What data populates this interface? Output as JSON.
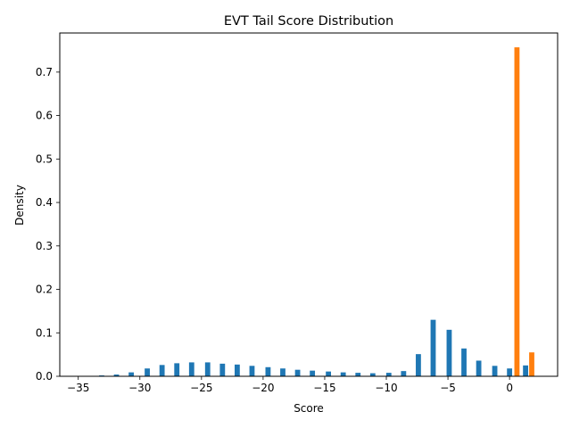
{
  "chart_data": {
    "type": "bar",
    "title": "EVT Tail Score Distribution",
    "xlabel": "Score",
    "ylabel": "Density",
    "xlim": [
      -36.5,
      3.9
    ],
    "ylim": [
      0,
      0.79
    ],
    "xticks": [
      -35,
      -30,
      -25,
      -20,
      -15,
      -10,
      -5,
      0
    ],
    "xtick_labels": [
      "−35",
      "−30",
      "−25",
      "−20",
      "−15",
      "−10",
      "−5",
      "0"
    ],
    "yticks": [
      0.0,
      0.1,
      0.2,
      0.3,
      0.4,
      0.5,
      0.6,
      0.7
    ],
    "ytick_labels": [
      "0.0",
      "0.1",
      "0.2",
      "0.3",
      "0.4",
      "0.5",
      "0.6",
      "0.7"
    ],
    "grid": false,
    "legend": "none",
    "bar_width": 0.42,
    "series": [
      {
        "color": "#1f77b4",
        "x": [
          -33.1,
          -31.9,
          -30.7,
          -29.4,
          -28.2,
          -27.0,
          -25.8,
          -24.5,
          -23.3,
          -22.1,
          -20.9,
          -19.6,
          -18.4,
          -17.2,
          -16.0,
          -14.7,
          -13.5,
          -12.3,
          -11.1,
          -9.8,
          -8.6,
          -7.4,
          -6.2,
          -4.9,
          -3.7,
          -2.5,
          -1.2,
          0.0,
          1.3
        ],
        "values": [
          0.002,
          0.004,
          0.009,
          0.018,
          0.026,
          0.03,
          0.032,
          0.032,
          0.029,
          0.027,
          0.024,
          0.021,
          0.018,
          0.015,
          0.013,
          0.011,
          0.009,
          0.008,
          0.007,
          0.008,
          0.012,
          0.051,
          0.13,
          0.107,
          0.064,
          0.036,
          0.024,
          0.018,
          0.025
        ]
      },
      {
        "color": "#ff7f0e",
        "x": [
          0.6,
          1.8
        ],
        "values": [
          0.757,
          0.055
        ]
      }
    ]
  }
}
